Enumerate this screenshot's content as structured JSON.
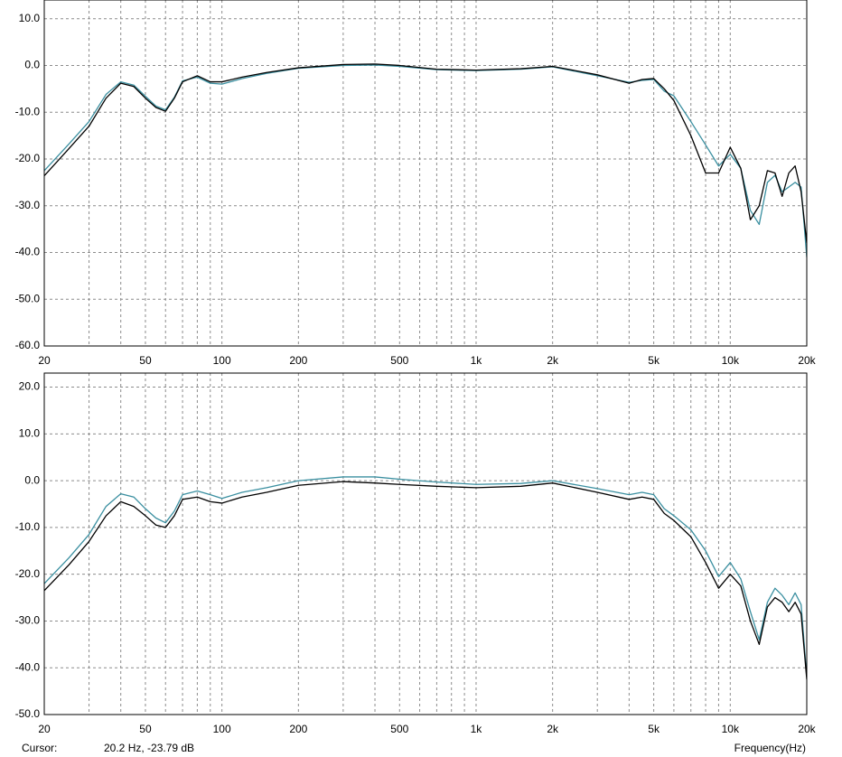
{
  "chart_data": [
    {
      "type": "line",
      "xscale": "log",
      "grid": true,
      "x": [
        20,
        25,
        30,
        35,
        40,
        45,
        50,
        55,
        60,
        65,
        70,
        80,
        90,
        100,
        120,
        150,
        200,
        300,
        400,
        500,
        700,
        1000,
        1500,
        2000,
        3000,
        4000,
        4500,
        5000,
        5500,
        6000,
        7000,
        8000,
        9000,
        10000,
        11000,
        12000,
        13000,
        14000,
        15000,
        16000,
        17000,
        18000,
        19000,
        20000
      ],
      "xlim": [
        20,
        20000
      ],
      "xticks": [
        20,
        50,
        100,
        200,
        500,
        {
          "value": 1000,
          "label": "1k"
        },
        {
          "value": 2000,
          "label": "2k"
        },
        {
          "value": 5000,
          "label": "5k"
        },
        {
          "value": 10000,
          "label": "10k"
        },
        {
          "value": 20000,
          "label": "20k"
        }
      ],
      "xminor": [
        30,
        40,
        60,
        70,
        80,
        90,
        300,
        400,
        600,
        700,
        800,
        900,
        3000,
        4000,
        6000,
        7000,
        8000,
        9000
      ],
      "ylim": [
        -60,
        14
      ],
      "yticks": [
        {
          "value": -60,
          "label": "-60.0"
        },
        {
          "value": -50,
          "label": "-50.0"
        },
        {
          "value": -40,
          "label": "-40.0"
        },
        {
          "value": -30,
          "label": "-30.0"
        },
        {
          "value": -20,
          "label": "-20.0"
        },
        {
          "value": -10,
          "label": "-10.0"
        },
        {
          "value": 0,
          "label": "0.0"
        },
        {
          "value": 10,
          "label": "10.0"
        }
      ],
      "series": [
        {
          "color": "#3a8fa0",
          "values": [
            -22.5,
            -16.8,
            -12,
            -6.2,
            -3.5,
            -4.2,
            -6.6,
            -8.7,
            -9.5,
            -6.8,
            -3.3,
            -2.5,
            -3.8,
            -4,
            -2.8,
            -1.7,
            -0.6,
            0,
            0.1,
            -0.2,
            -0.9,
            -1.1,
            -0.8,
            -0.3,
            -2.2,
            -3.6,
            -3.2,
            -3,
            -5.5,
            -6.5,
            -12,
            -17,
            -21.5,
            -19,
            -22,
            -31,
            -34,
            -25,
            -23.5,
            -27,
            -26,
            -25,
            -26,
            -41
          ]
        },
        {
          "color": "#000000",
          "values": [
            -23.6,
            -17.8,
            -13,
            -7,
            -3.8,
            -4.5,
            -7,
            -9,
            -9.8,
            -7,
            -3.5,
            -2.2,
            -3.5,
            -3.5,
            -2.5,
            -1.5,
            -0.5,
            0.2,
            0.3,
            0,
            -0.8,
            -1,
            -0.7,
            -0.2,
            -2,
            -3.8,
            -3,
            -2.8,
            -5,
            -7.5,
            -15,
            -23,
            -23,
            -17.5,
            -22,
            -33,
            -30,
            -22.5,
            -23,
            -28,
            -23,
            -21.5,
            -27,
            -38
          ]
        }
      ]
    },
    {
      "type": "line",
      "xscale": "log",
      "grid": true,
      "x": [
        20,
        25,
        30,
        35,
        40,
        45,
        50,
        55,
        60,
        65,
        70,
        80,
        90,
        100,
        120,
        150,
        200,
        300,
        400,
        500,
        700,
        1000,
        1500,
        2000,
        3000,
        4000,
        4500,
        5000,
        5500,
        6000,
        7000,
        8000,
        9000,
        10000,
        11000,
        12000,
        13000,
        14000,
        15000,
        16000,
        17000,
        18000,
        19000,
        20000
      ],
      "xlim": [
        20,
        20000
      ],
      "xticks": [
        20,
        50,
        100,
        200,
        500,
        {
          "value": 1000,
          "label": "1k"
        },
        {
          "value": 2000,
          "label": "2k"
        },
        {
          "value": 5000,
          "label": "5k"
        },
        {
          "value": 10000,
          "label": "10k"
        },
        {
          "value": 20000,
          "label": "20k"
        }
      ],
      "xminor": [
        30,
        40,
        60,
        70,
        80,
        90,
        300,
        400,
        600,
        700,
        800,
        900,
        3000,
        4000,
        6000,
        7000,
        8000,
        9000
      ],
      "xlabel": "Frequency(Hz)",
      "ylim": [
        -50,
        23
      ],
      "yticks": [
        {
          "value": -50,
          "label": "-50.0"
        },
        {
          "value": -40,
          "label": "-40.0"
        },
        {
          "value": -30,
          "label": "-30.0"
        },
        {
          "value": -20,
          "label": "-20.0"
        },
        {
          "value": -10,
          "label": "-10.0"
        },
        {
          "value": 0,
          "label": "0.0"
        },
        {
          "value": 10,
          "label": "10.0"
        },
        {
          "value": 20,
          "label": "20.0"
        }
      ],
      "series": [
        {
          "color": "#3a8fa0",
          "values": [
            -22,
            -16.5,
            -11.5,
            -5.5,
            -2.8,
            -3.5,
            -6,
            -8,
            -9,
            -6.5,
            -3,
            -2.2,
            -3,
            -3.8,
            -2.5,
            -1.5,
            0,
            0.8,
            0.8,
            0.3,
            -0.3,
            -0.8,
            -0.6,
            0,
            -1.7,
            -3,
            -2.5,
            -3,
            -6,
            -7.5,
            -10.5,
            -15,
            -20.5,
            -17.5,
            -21,
            -28,
            -34,
            -26,
            -23,
            -24.5,
            -26.5,
            -24,
            -26.5,
            -42
          ]
        },
        {
          "color": "#000000",
          "values": [
            -23.5,
            -18,
            -13,
            -7.5,
            -4.5,
            -5.5,
            -7.5,
            -9.5,
            -10,
            -7.5,
            -4,
            -3.5,
            -4.5,
            -4.8,
            -3.5,
            -2.5,
            -1,
            -0.2,
            -0.5,
            -0.8,
            -1.2,
            -1.5,
            -1.2,
            -0.5,
            -2.5,
            -4,
            -3.5,
            -4,
            -7,
            -8.5,
            -12,
            -17.5,
            -23,
            -20,
            -22.5,
            -30,
            -35,
            -27,
            -25,
            -26,
            -28,
            -26,
            -28.5,
            -42.5
          ]
        }
      ]
    }
  ],
  "status": {
    "cursor_label": "Cursor:",
    "cursor_value": "20.2 Hz, -23.79 dB"
  }
}
